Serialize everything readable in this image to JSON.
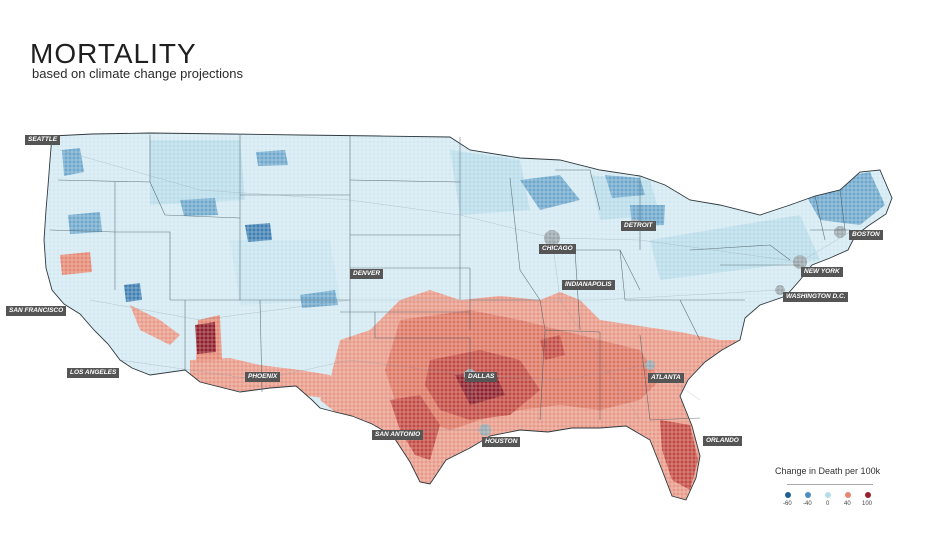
{
  "header": {
    "title": "MORTALITY",
    "subtitle": "based on climate change projections"
  },
  "cities": [
    {
      "id": "seattle",
      "label": "SEATTLE"
    },
    {
      "id": "san-francisco",
      "label": "SAN FRANCISCO"
    },
    {
      "id": "los-angeles",
      "label": "LOS ANGELES"
    },
    {
      "id": "phoenix",
      "label": "PHOENIX"
    },
    {
      "id": "denver",
      "label": "DENVER"
    },
    {
      "id": "san-antonio",
      "label": "SAN ANTONIO"
    },
    {
      "id": "dallas",
      "label": "DALLAS"
    },
    {
      "id": "houston",
      "label": "HOUSTON"
    },
    {
      "id": "chicago",
      "label": "CHICAGO"
    },
    {
      "id": "detroit",
      "label": "DETROIT"
    },
    {
      "id": "indianapolis",
      "label": "INDIANAPOLIS"
    },
    {
      "id": "atlanta",
      "label": "ATLANTA"
    },
    {
      "id": "orlando",
      "label": "ORLANDO"
    },
    {
      "id": "washington-dc",
      "label": "WASHINGTON D.C."
    },
    {
      "id": "new-york",
      "label": "NEW YORK"
    },
    {
      "id": "boston",
      "label": "BOSTON"
    }
  ],
  "legend": {
    "title": "Change in Death per 100k",
    "entries": [
      {
        "label": "-60",
        "color": "#1f5f94"
      },
      {
        "label": "-40",
        "color": "#4a8fc0"
      },
      {
        "label": "0",
        "color": "#b7dce9"
      },
      {
        "label": "40",
        "color": "#e58873"
      },
      {
        "label": "100",
        "color": "#9c1f2c"
      }
    ]
  },
  "colors": {
    "cool": "#d2e9f1",
    "cool_mid": "#b9dcea",
    "cool_strong": "#6ea7cc",
    "cool_deep": "#3f7fb2",
    "warm": "#e89a89",
    "warm_mid": "#dd7563",
    "warm_strong": "#c24a42",
    "warm_deep": "#8f1f2a",
    "border": "#4a5a63"
  }
}
